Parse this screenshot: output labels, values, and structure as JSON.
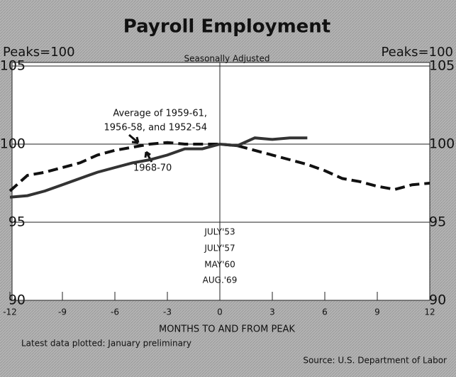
{
  "chart_data": {
    "type": "line",
    "title": "Payroll Employment",
    "subtitle": "Seasonally Adjusted",
    "y_label": "Peaks=100",
    "x_label": "MONTHS TO AND FROM PEAK",
    "annotations": [
      "Average of 1959-61,",
      "1956-58, and 1952-54"
    ],
    "peak_dates": [
      "JULY'53",
      "JULY'57",
      "MAY'60",
      "AUG.'69"
    ],
    "note": "Latest data plotted: January preliminary",
    "source": "Source: U.S. Department of Labor",
    "xlim": [
      -12,
      12
    ],
    "xticks": [
      -12,
      -9,
      -6,
      -3,
      0,
      3,
      6,
      9,
      12
    ],
    "ylim": [
      90,
      105
    ],
    "yticks": [
      90,
      95,
      100,
      105
    ],
    "grid": true,
    "series": [
      {
        "color": "#111111",
        "dashed": true,
        "x": [
          -12,
          -11,
          -10,
          -9,
          -8,
          -7,
          -6,
          -5,
          -4,
          -3,
          -2,
          -1,
          0,
          1,
          2,
          3,
          4,
          5,
          6,
          7,
          8,
          9,
          10,
          11,
          12
        ],
        "values": [
          97.0,
          98.0,
          98.2,
          98.5,
          98.8,
          99.3,
          99.6,
          99.8,
          100.0,
          100.1,
          100.0,
          100.0,
          100.0,
          99.9,
          99.6,
          99.3,
          99.0,
          98.7,
          98.3,
          97.8,
          97.6,
          97.3,
          97.1,
          97.4,
          97.5
        ]
      },
      {
        "name": "1968-70",
        "color": "#333333",
        "dashed": false,
        "x": [
          -12,
          -11,
          -10,
          -9,
          -8,
          -7,
          -6,
          -5,
          -4,
          -3,
          -2,
          -1,
          0,
          1,
          2,
          3,
          4,
          5
        ],
        "values": [
          96.6,
          96.7,
          97.0,
          97.4,
          97.8,
          98.2,
          98.5,
          98.8,
          99.0,
          99.3,
          99.7,
          99.7,
          100.0,
          99.9,
          100.4,
          100.3,
          100.4,
          100.4
        ]
      }
    ]
  }
}
